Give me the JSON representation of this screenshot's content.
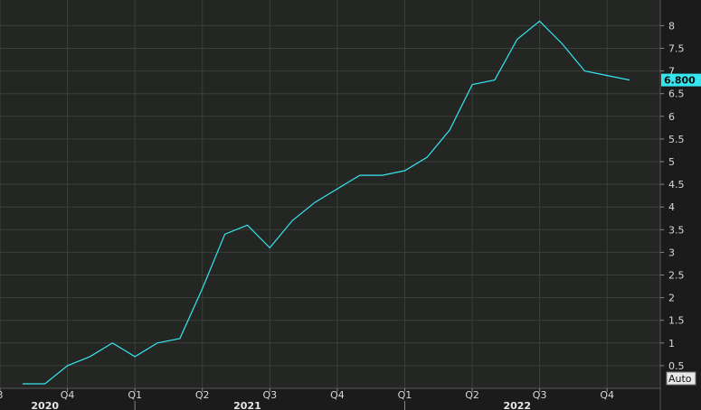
{
  "chart_data": {
    "type": "line",
    "series": [
      {
        "color": "#35e6f0",
        "x": [
          "2020-08",
          "2020-09",
          "2020-10",
          "2020-11",
          "2020-12",
          "2021-01",
          "2021-02",
          "2021-03",
          "2021-04",
          "2021-05",
          "2021-06",
          "2021-07",
          "2021-08",
          "2021-09",
          "2021-10",
          "2021-11",
          "2021-12",
          "2022-01",
          "2022-02",
          "2022-03",
          "2022-04",
          "2022-05",
          "2022-06",
          "2022-07",
          "2022-08",
          "2022-09",
          "2022-10",
          "2022-11"
        ],
        "values": [
          0.1,
          0.1,
          0.5,
          0.7,
          1.0,
          0.7,
          1.0,
          1.1,
          2.2,
          3.4,
          3.6,
          3.1,
          3.7,
          4.1,
          4.4,
          4.7,
          4.7,
          4.8,
          5.1,
          5.7,
          6.7,
          6.8,
          7.7,
          8.1,
          7.6,
          7.0,
          6.9,
          6.8
        ]
      }
    ],
    "last_value_label": "6.800",
    "y_ticks": [
      "0.5",
      "1",
      "1.5",
      "2",
      "2.5",
      "3",
      "3.5",
      "4",
      "4.5",
      "5",
      "5.5",
      "6",
      "6.5",
      "7",
      "7.5",
      "8"
    ],
    "y_range": [
      0,
      8.2
    ],
    "x_ticks": [
      {
        "label": "3",
        "date": "2020-07"
      },
      {
        "label": "Q4",
        "date": "2020-10"
      },
      {
        "label": "Q1",
        "date": "2021-01"
      },
      {
        "label": "Q2",
        "date": "2021-04"
      },
      {
        "label": "Q3",
        "date": "2021-07"
      },
      {
        "label": "Q4",
        "date": "2021-10"
      },
      {
        "label": "Q1",
        "date": "2022-01"
      },
      {
        "label": "Q2",
        "date": "2022-04"
      },
      {
        "label": "Q3",
        "date": "2022-07"
      },
      {
        "label": "Q4",
        "date": "2022-10"
      }
    ],
    "year_labels": [
      {
        "label": "2020",
        "date": "2020-09"
      },
      {
        "label": "2021",
        "date": "2021-06"
      },
      {
        "label": "2022",
        "date": "2022-06"
      }
    ],
    "grid": true,
    "colors": {
      "background": "#232622",
      "grid": "#3c3f3b",
      "line": "#35e6f0"
    }
  },
  "controls": {
    "auto_label": "Auto"
  }
}
